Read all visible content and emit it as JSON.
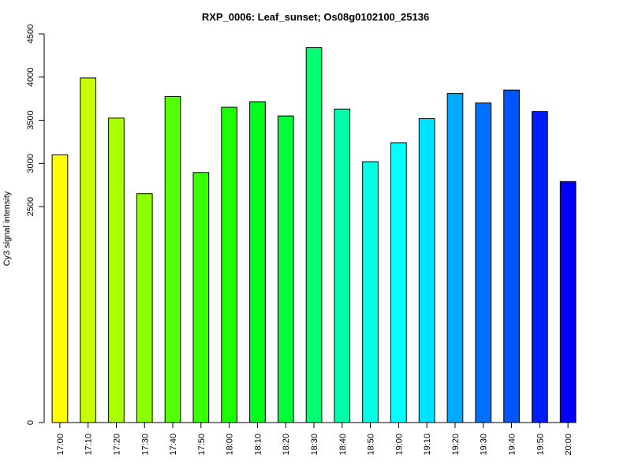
{
  "chart_data": {
    "type": "bar",
    "title": "RXP_0006: Leaf_sunset; Os08g0102100_25136",
    "xlabel": "",
    "ylabel": "Cy3 signal intensity",
    "ylim": [
      0,
      4500
    ],
    "yticks": [
      0,
      2500,
      3000,
      3500,
      4000,
      4500
    ],
    "grid": false,
    "categories": [
      "17:00",
      "17:10",
      "17:20",
      "17:30",
      "17:40",
      "17:50",
      "18:00",
      "18:10",
      "18:20",
      "18:30",
      "18:40",
      "18:50",
      "19:00",
      "19:10",
      "19:20",
      "19:30",
      "19:40",
      "19:50",
      "20:00"
    ],
    "values": [
      3100,
      3990,
      3525,
      2650,
      3775,
      2895,
      3650,
      3715,
      3550,
      4340,
      3630,
      3020,
      3240,
      3520,
      3810,
      3700,
      3850,
      3600,
      2790
    ],
    "colors": [
      "#FFFF00",
      "#C6FF00",
      "#AAFF00",
      "#8DFF00",
      "#55FF00",
      "#39FF00",
      "#1CFF00",
      "#00FF1C",
      "#00FF39",
      "#00FF71",
      "#00FFAA",
      "#00FFE3",
      "#00FFFF",
      "#00E3FF",
      "#00AAFF",
      "#0071FF",
      "#0055FF",
      "#001CFF",
      "#0000FF"
    ]
  }
}
